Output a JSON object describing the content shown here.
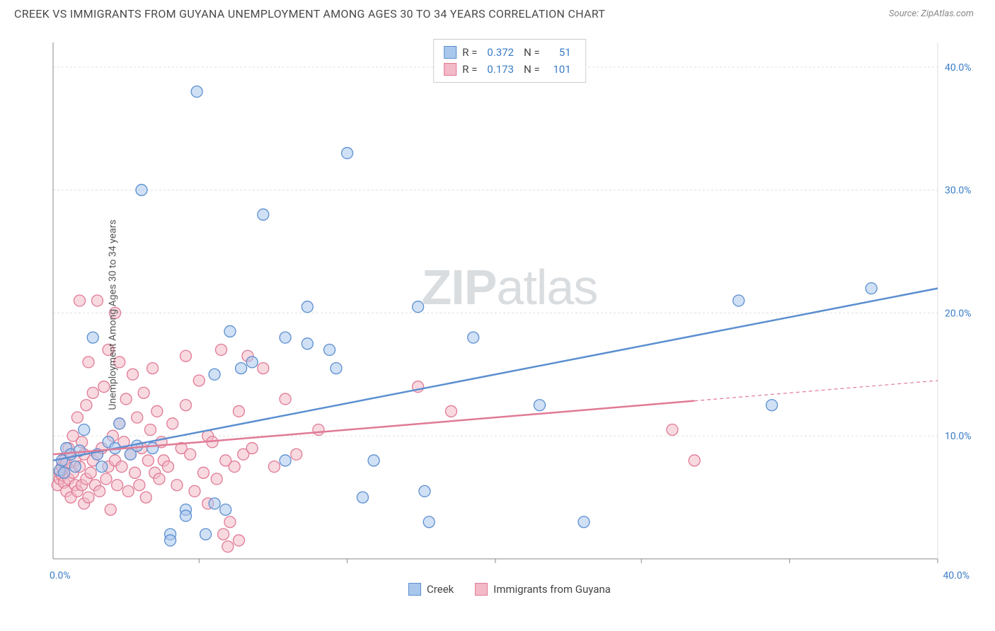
{
  "title": "CREEK VS IMMIGRANTS FROM GUYANA UNEMPLOYMENT AMONG AGES 30 TO 34 YEARS CORRELATION CHART",
  "source": "Source: ZipAtlas.com",
  "y_axis_label": "Unemployment Among Ages 30 to 34 years",
  "watermark_a": "ZIP",
  "watermark_b": "atlas",
  "chart": {
    "type": "scatter",
    "xlim": [
      0,
      40
    ],
    "ylim": [
      0,
      42
    ],
    "x_ticks": [
      {
        "v": 0,
        "label": "0.0%"
      },
      {
        "v": 40,
        "label": "40.0%"
      }
    ],
    "y_ticks": [
      {
        "v": 10,
        "label": "10.0%"
      },
      {
        "v": 20,
        "label": "20.0%"
      },
      {
        "v": 30,
        "label": "30.0%"
      },
      {
        "v": 40,
        "label": "40.0%"
      }
    ],
    "x_grid_ticks": [
      6.6,
      13.3,
      20,
      26.6,
      33.3,
      40
    ],
    "background_color": "#ffffff",
    "grid_color": "#e0e0e0",
    "axis_color": "#888888",
    "marker_radius": 8,
    "marker_opacity": 0.55,
    "series": [
      {
        "name": "Creek",
        "color_fill": "#a9c7ec",
        "color_stroke": "#5b8fd0",
        "R": "0.372",
        "N": "51",
        "regression": {
          "x1": 0,
          "y1": 8.0,
          "x2": 40,
          "y2": 22.0,
          "dash_from_x": null
        },
        "points": [
          [
            0.3,
            7.2
          ],
          [
            0.4,
            8.0
          ],
          [
            0.5,
            7.0
          ],
          [
            0.6,
            9.0
          ],
          [
            0.8,
            8.5
          ],
          [
            1.0,
            7.5
          ],
          [
            1.2,
            8.8
          ],
          [
            1.4,
            10.5
          ],
          [
            1.8,
            18.0
          ],
          [
            2.0,
            8.5
          ],
          [
            2.2,
            7.5
          ],
          [
            2.5,
            9.5
          ],
          [
            2.8,
            9.0
          ],
          [
            3.0,
            11.0
          ],
          [
            3.5,
            8.5
          ],
          [
            3.8,
            9.2
          ],
          [
            4.0,
            30.0
          ],
          [
            4.5,
            9.0
          ],
          [
            5.3,
            2.0
          ],
          [
            5.3,
            1.5
          ],
          [
            6.0,
            4.0
          ],
          [
            6.0,
            3.5
          ],
          [
            6.5,
            38.0
          ],
          [
            6.9,
            2.0
          ],
          [
            7.3,
            4.5
          ],
          [
            7.3,
            15.0
          ],
          [
            7.8,
            4.0
          ],
          [
            8.0,
            18.5
          ],
          [
            8.5,
            15.5
          ],
          [
            9.0,
            16.0
          ],
          [
            9.5,
            28.0
          ],
          [
            10.5,
            18.0
          ],
          [
            10.5,
            8.0
          ],
          [
            11.5,
            17.5
          ],
          [
            11.5,
            20.5
          ],
          [
            12.5,
            17.0
          ],
          [
            12.8,
            15.5
          ],
          [
            13.3,
            33.0
          ],
          [
            14.0,
            5.0
          ],
          [
            14.5,
            8.0
          ],
          [
            16.5,
            20.5
          ],
          [
            16.8,
            5.5
          ],
          [
            17.0,
            3.0
          ],
          [
            19.0,
            18.0
          ],
          [
            22.0,
            12.5
          ],
          [
            24.0,
            3.0
          ],
          [
            31.0,
            21.0
          ],
          [
            32.5,
            12.5
          ],
          [
            37.0,
            22.0
          ]
        ]
      },
      {
        "name": "Immigrants from Guyana",
        "color_fill": "#f3b9c7",
        "color_stroke": "#e07a95",
        "R": "0.173",
        "N": "101",
        "regression": {
          "x1": 0,
          "y1": 8.5,
          "x2": 40,
          "y2": 14.5,
          "dash_from_x": 29
        },
        "points": [
          [
            0.2,
            6.0
          ],
          [
            0.3,
            6.5
          ],
          [
            0.3,
            7.0
          ],
          [
            0.4,
            6.8
          ],
          [
            0.4,
            7.5
          ],
          [
            0.5,
            6.2
          ],
          [
            0.5,
            8.0
          ],
          [
            0.6,
            5.5
          ],
          [
            0.6,
            7.8
          ],
          [
            0.7,
            6.5
          ],
          [
            0.7,
            9.0
          ],
          [
            0.8,
            5.0
          ],
          [
            0.8,
            8.5
          ],
          [
            0.9,
            7.0
          ],
          [
            0.9,
            10.0
          ],
          [
            1.0,
            6.0
          ],
          [
            1.0,
            8.0
          ],
          [
            1.1,
            5.5
          ],
          [
            1.1,
            11.5
          ],
          [
            1.2,
            7.5
          ],
          [
            1.2,
            21.0
          ],
          [
            1.3,
            6.0
          ],
          [
            1.3,
            9.5
          ],
          [
            1.4,
            4.5
          ],
          [
            1.4,
            8.5
          ],
          [
            1.5,
            6.5
          ],
          [
            1.5,
            12.5
          ],
          [
            1.6,
            5.0
          ],
          [
            1.6,
            16.0
          ],
          [
            1.7,
            7.0
          ],
          [
            1.8,
            8.0
          ],
          [
            1.8,
            13.5
          ],
          [
            1.9,
            6.0
          ],
          [
            2.0,
            21.0
          ],
          [
            2.0,
            8.5
          ],
          [
            2.1,
            5.5
          ],
          [
            2.2,
            9.0
          ],
          [
            2.3,
            14.0
          ],
          [
            2.4,
            6.5
          ],
          [
            2.5,
            17.0
          ],
          [
            2.5,
            7.5
          ],
          [
            2.6,
            4.0
          ],
          [
            2.7,
            10.0
          ],
          [
            2.8,
            20.0
          ],
          [
            2.8,
            8.0
          ],
          [
            2.9,
            6.0
          ],
          [
            3.0,
            11.0
          ],
          [
            3.0,
            16.0
          ],
          [
            3.1,
            7.5
          ],
          [
            3.2,
            9.5
          ],
          [
            3.3,
            13.0
          ],
          [
            3.4,
            5.5
          ],
          [
            3.5,
            8.5
          ],
          [
            3.6,
            15.0
          ],
          [
            3.7,
            7.0
          ],
          [
            3.8,
            11.5
          ],
          [
            3.9,
            6.0
          ],
          [
            4.0,
            9.0
          ],
          [
            4.1,
            13.5
          ],
          [
            4.2,
            5.0
          ],
          [
            4.3,
            8.0
          ],
          [
            4.4,
            10.5
          ],
          [
            4.5,
            15.5
          ],
          [
            4.6,
            7.0
          ],
          [
            4.7,
            12.0
          ],
          [
            4.8,
            6.5
          ],
          [
            4.9,
            9.5
          ],
          [
            5.0,
            8.0
          ],
          [
            5.2,
            7.5
          ],
          [
            5.4,
            11.0
          ],
          [
            5.6,
            6.0
          ],
          [
            5.8,
            9.0
          ],
          [
            6.0,
            12.5
          ],
          [
            6.0,
            16.5
          ],
          [
            6.2,
            8.5
          ],
          [
            6.4,
            5.5
          ],
          [
            6.6,
            14.5
          ],
          [
            6.8,
            7.0
          ],
          [
            7.0,
            4.5
          ],
          [
            7.0,
            10.0
          ],
          [
            7.2,
            9.5
          ],
          [
            7.4,
            6.5
          ],
          [
            7.6,
            17.0
          ],
          [
            7.7,
            2.0
          ],
          [
            7.8,
            8.0
          ],
          [
            7.9,
            1.0
          ],
          [
            8.0,
            3.0
          ],
          [
            8.2,
            7.5
          ],
          [
            8.4,
            12.0
          ],
          [
            8.4,
            1.5
          ],
          [
            8.6,
            8.5
          ],
          [
            8.8,
            16.5
          ],
          [
            9.0,
            9.0
          ],
          [
            9.5,
            15.5
          ],
          [
            10.0,
            7.5
          ],
          [
            10.5,
            13.0
          ],
          [
            11.0,
            8.5
          ],
          [
            12.0,
            10.5
          ],
          [
            16.5,
            14.0
          ],
          [
            18.0,
            12.0
          ],
          [
            28.0,
            10.5
          ],
          [
            29.0,
            8.0
          ]
        ]
      }
    ]
  },
  "legend_bottom": [
    {
      "label": "Creek",
      "fill": "#a9c7ec",
      "stroke": "#5b8fd0"
    },
    {
      "label": "Immigrants from Guyana",
      "fill": "#f3b9c7",
      "stroke": "#e07a95"
    }
  ]
}
